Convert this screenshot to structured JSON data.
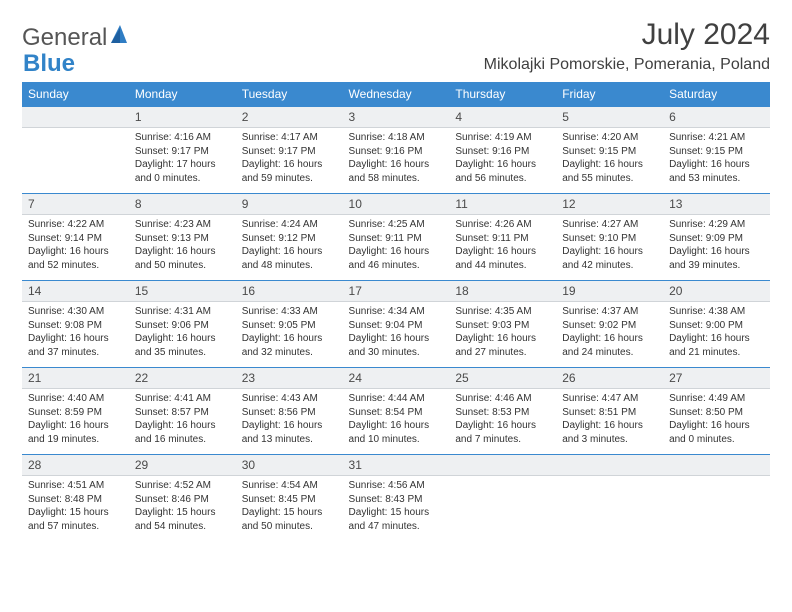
{
  "brand": {
    "text1": "General",
    "text2": "Blue"
  },
  "title": {
    "monthYear": "July 2024",
    "location": "Mikolajki Pomorskie, Pomerania, Poland"
  },
  "colors": {
    "header_bg": "#3a89cf",
    "header_text": "#ffffff",
    "daynum_bg": "#eef0f2",
    "border": "#3a89cf",
    "body_text": "#333333",
    "brand_gray": "#555555",
    "brand_blue": "#3183c8"
  },
  "dayNames": [
    "Sunday",
    "Monday",
    "Tuesday",
    "Wednesday",
    "Thursday",
    "Friday",
    "Saturday"
  ],
  "weeks": [
    [
      {
        "n": "",
        "sr": "",
        "ss": "",
        "dl": ""
      },
      {
        "n": "1",
        "sr": "Sunrise: 4:16 AM",
        "ss": "Sunset: 9:17 PM",
        "dl": "Daylight: 17 hours and 0 minutes."
      },
      {
        "n": "2",
        "sr": "Sunrise: 4:17 AM",
        "ss": "Sunset: 9:17 PM",
        "dl": "Daylight: 16 hours and 59 minutes."
      },
      {
        "n": "3",
        "sr": "Sunrise: 4:18 AM",
        "ss": "Sunset: 9:16 PM",
        "dl": "Daylight: 16 hours and 58 minutes."
      },
      {
        "n": "4",
        "sr": "Sunrise: 4:19 AM",
        "ss": "Sunset: 9:16 PM",
        "dl": "Daylight: 16 hours and 56 minutes."
      },
      {
        "n": "5",
        "sr": "Sunrise: 4:20 AM",
        "ss": "Sunset: 9:15 PM",
        "dl": "Daylight: 16 hours and 55 minutes."
      },
      {
        "n": "6",
        "sr": "Sunrise: 4:21 AM",
        "ss": "Sunset: 9:15 PM",
        "dl": "Daylight: 16 hours and 53 minutes."
      }
    ],
    [
      {
        "n": "7",
        "sr": "Sunrise: 4:22 AM",
        "ss": "Sunset: 9:14 PM",
        "dl": "Daylight: 16 hours and 52 minutes."
      },
      {
        "n": "8",
        "sr": "Sunrise: 4:23 AM",
        "ss": "Sunset: 9:13 PM",
        "dl": "Daylight: 16 hours and 50 minutes."
      },
      {
        "n": "9",
        "sr": "Sunrise: 4:24 AM",
        "ss": "Sunset: 9:12 PM",
        "dl": "Daylight: 16 hours and 48 minutes."
      },
      {
        "n": "10",
        "sr": "Sunrise: 4:25 AM",
        "ss": "Sunset: 9:11 PM",
        "dl": "Daylight: 16 hours and 46 minutes."
      },
      {
        "n": "11",
        "sr": "Sunrise: 4:26 AM",
        "ss": "Sunset: 9:11 PM",
        "dl": "Daylight: 16 hours and 44 minutes."
      },
      {
        "n": "12",
        "sr": "Sunrise: 4:27 AM",
        "ss": "Sunset: 9:10 PM",
        "dl": "Daylight: 16 hours and 42 minutes."
      },
      {
        "n": "13",
        "sr": "Sunrise: 4:29 AM",
        "ss": "Sunset: 9:09 PM",
        "dl": "Daylight: 16 hours and 39 minutes."
      }
    ],
    [
      {
        "n": "14",
        "sr": "Sunrise: 4:30 AM",
        "ss": "Sunset: 9:08 PM",
        "dl": "Daylight: 16 hours and 37 minutes."
      },
      {
        "n": "15",
        "sr": "Sunrise: 4:31 AM",
        "ss": "Sunset: 9:06 PM",
        "dl": "Daylight: 16 hours and 35 minutes."
      },
      {
        "n": "16",
        "sr": "Sunrise: 4:33 AM",
        "ss": "Sunset: 9:05 PM",
        "dl": "Daylight: 16 hours and 32 minutes."
      },
      {
        "n": "17",
        "sr": "Sunrise: 4:34 AM",
        "ss": "Sunset: 9:04 PM",
        "dl": "Daylight: 16 hours and 30 minutes."
      },
      {
        "n": "18",
        "sr": "Sunrise: 4:35 AM",
        "ss": "Sunset: 9:03 PM",
        "dl": "Daylight: 16 hours and 27 minutes."
      },
      {
        "n": "19",
        "sr": "Sunrise: 4:37 AM",
        "ss": "Sunset: 9:02 PM",
        "dl": "Daylight: 16 hours and 24 minutes."
      },
      {
        "n": "20",
        "sr": "Sunrise: 4:38 AM",
        "ss": "Sunset: 9:00 PM",
        "dl": "Daylight: 16 hours and 21 minutes."
      }
    ],
    [
      {
        "n": "21",
        "sr": "Sunrise: 4:40 AM",
        "ss": "Sunset: 8:59 PM",
        "dl": "Daylight: 16 hours and 19 minutes."
      },
      {
        "n": "22",
        "sr": "Sunrise: 4:41 AM",
        "ss": "Sunset: 8:57 PM",
        "dl": "Daylight: 16 hours and 16 minutes."
      },
      {
        "n": "23",
        "sr": "Sunrise: 4:43 AM",
        "ss": "Sunset: 8:56 PM",
        "dl": "Daylight: 16 hours and 13 minutes."
      },
      {
        "n": "24",
        "sr": "Sunrise: 4:44 AM",
        "ss": "Sunset: 8:54 PM",
        "dl": "Daylight: 16 hours and 10 minutes."
      },
      {
        "n": "25",
        "sr": "Sunrise: 4:46 AM",
        "ss": "Sunset: 8:53 PM",
        "dl": "Daylight: 16 hours and 7 minutes."
      },
      {
        "n": "26",
        "sr": "Sunrise: 4:47 AM",
        "ss": "Sunset: 8:51 PM",
        "dl": "Daylight: 16 hours and 3 minutes."
      },
      {
        "n": "27",
        "sr": "Sunrise: 4:49 AM",
        "ss": "Sunset: 8:50 PM",
        "dl": "Daylight: 16 hours and 0 minutes."
      }
    ],
    [
      {
        "n": "28",
        "sr": "Sunrise: 4:51 AM",
        "ss": "Sunset: 8:48 PM",
        "dl": "Daylight: 15 hours and 57 minutes."
      },
      {
        "n": "29",
        "sr": "Sunrise: 4:52 AM",
        "ss": "Sunset: 8:46 PM",
        "dl": "Daylight: 15 hours and 54 minutes."
      },
      {
        "n": "30",
        "sr": "Sunrise: 4:54 AM",
        "ss": "Sunset: 8:45 PM",
        "dl": "Daylight: 15 hours and 50 minutes."
      },
      {
        "n": "31",
        "sr": "Sunrise: 4:56 AM",
        "ss": "Sunset: 8:43 PM",
        "dl": "Daylight: 15 hours and 47 minutes."
      },
      {
        "n": "",
        "sr": "",
        "ss": "",
        "dl": ""
      },
      {
        "n": "",
        "sr": "",
        "ss": "",
        "dl": ""
      },
      {
        "n": "",
        "sr": "",
        "ss": "",
        "dl": ""
      }
    ]
  ]
}
